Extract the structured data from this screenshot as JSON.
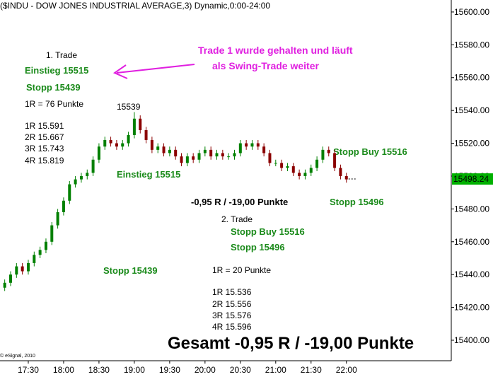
{
  "chart_data": {
    "type": "candlestick",
    "title": "($INDU - DOW JONES INDUSTRIAL AVERAGE,3) Dynamic,0:00-24:00",
    "copyright": "© eSignal, 2010",
    "up_color": "#008000",
    "down_color": "#8b0000",
    "x": [
      "17:10",
      "17:15",
      "17:20",
      "17:25",
      "17:30",
      "17:35",
      "17:40",
      "17:45",
      "17:50",
      "17:55",
      "18:00",
      "18:05",
      "18:10",
      "18:15",
      "18:20",
      "18:25",
      "18:30",
      "18:35",
      "18:40",
      "18:45",
      "18:50",
      "18:55",
      "19:00",
      "19:05",
      "19:10",
      "19:15",
      "19:20",
      "19:25",
      "19:30",
      "19:35",
      "19:40",
      "19:45",
      "19:50",
      "19:55",
      "20:00",
      "20:05",
      "20:10",
      "20:15",
      "20:20",
      "20:25",
      "20:30",
      "20:35",
      "20:40",
      "20:45",
      "20:50",
      "20:55",
      "21:00",
      "21:05",
      "21:10",
      "21:15",
      "21:20",
      "21:25",
      "21:30",
      "21:35",
      "21:40",
      "21:45",
      "21:50",
      "21:55",
      "22:00"
    ],
    "open": [
      15432,
      15435,
      15440,
      15445,
      15442,
      15447,
      15452,
      15455,
      15460,
      15470,
      15478,
      15485,
      15495,
      15498,
      15500,
      15502,
      15510,
      15518,
      15522,
      15520,
      15518,
      15520,
      15525,
      15535,
      15528,
      15522,
      15516,
      15518,
      15514,
      15516,
      15512,
      15508,
      15512,
      15510,
      15514,
      15516,
      15512,
      15514,
      15512,
      15512,
      15514,
      15520,
      15518,
      15520,
      15518,
      15514,
      15508,
      15508,
      15505,
      15506,
      15502,
      15500,
      15502,
      15505,
      15510,
      15516,
      15514,
      15505,
      15500
    ],
    "high": [
      15437,
      15442,
      15447,
      15447,
      15449,
      15454,
      15457,
      15462,
      15472,
      15480,
      15487,
      15497,
      15500,
      15502,
      15504,
      15512,
      15520,
      15524,
      15524,
      15522,
      15522,
      15527,
      15539,
      15537,
      15530,
      15524,
      15520,
      15520,
      15518,
      15518,
      15514,
      15514,
      15514,
      15516,
      15518,
      15518,
      15516,
      15516,
      15514,
      15516,
      15522,
      15522,
      15522,
      15522,
      15520,
      15516,
      15510,
      15510,
      15508,
      15508,
      15504,
      15504,
      15507,
      15512,
      15518,
      15518,
      15516,
      15507,
      15502
    ],
    "low": [
      15430,
      15433,
      15438,
      15440,
      15440,
      15445,
      15450,
      15453,
      15458,
      15468,
      15476,
      15483,
      15493,
      15496,
      15498,
      15500,
      15508,
      15516,
      15518,
      15516,
      15516,
      15518,
      15523,
      15526,
      15520,
      15514,
      15514,
      15512,
      15512,
      15510,
      15506,
      15506,
      15508,
      15508,
      15512,
      15510,
      15510,
      15510,
      15510,
      15510,
      15512,
      15516,
      15516,
      15516,
      15512,
      15506,
      15506,
      15503,
      15503,
      15500,
      15498,
      15498,
      15500,
      15503,
      15508,
      15512,
      15503,
      15498,
      15496
    ],
    "close": [
      15435,
      15440,
      15445,
      15442,
      15447,
      15452,
      15455,
      15460,
      15470,
      15478,
      15485,
      15495,
      15498,
      15500,
      15502,
      15510,
      15518,
      15522,
      15520,
      15518,
      15520,
      15525,
      15535,
      15528,
      15522,
      15516,
      15518,
      15514,
      15516,
      15512,
      15508,
      15512,
      15510,
      15514,
      15516,
      15512,
      15514,
      15512,
      15512,
      15514,
      15520,
      15518,
      15520,
      15518,
      15514,
      15508,
      15508,
      15505,
      15506,
      15502,
      15500,
      15502,
      15505,
      15510,
      15516,
      15514,
      15505,
      15500,
      15498
    ],
    "last_value": 15498.24,
    "last_color": "#00b000",
    "xlim": [
      "17:06",
      "23:29"
    ],
    "xticks": [
      "17:30",
      "18:00",
      "18:30",
      "19:00",
      "19:30",
      "20:00",
      "20:30",
      "21:00",
      "21:30",
      "22:00"
    ],
    "ylim": [
      15387.5,
      15607.3
    ],
    "yticks": [
      {
        "value": 15400,
        "label": "15400.00"
      },
      {
        "value": 15420,
        "label": "15420.00"
      },
      {
        "value": 15440,
        "label": "15440.00"
      },
      {
        "value": 15460,
        "label": "15460.00"
      },
      {
        "value": 15480,
        "label": "15480.00"
      },
      {
        "value": 15500,
        "label": "15500.00"
      },
      {
        "value": 15520,
        "label": "15520.00"
      },
      {
        "value": 15540,
        "label": "15540.00"
      },
      {
        "value": 15560,
        "label": "15560.00"
      },
      {
        "value": 15580,
        "label": "15580.00"
      },
      {
        "value": 15600,
        "label": "15600.00"
      }
    ],
    "annotations": [
      "1. Trade",
      "Einstieg 15515",
      "Stopp 15439",
      "1R = 76 Punkte",
      "1R 15.591",
      "2R 15.667",
      "3R 15.743",
      "4R 15.819",
      "15539",
      "Trade 1 wurde gehalten und läuft",
      "als Swing-Trade weiter",
      "Einstieg 15515",
      "Stopp Buy 15516",
      "-0,95 R / -19,00 Punkte",
      "Stopp 15496",
      "2. Trade",
      "Stopp Buy 15516",
      "Stopp 15496",
      "Stopp 15439",
      "1R = 20 Punkte",
      "1R 15.536",
      "2R 15.556",
      "3R 15.576",
      "4R 15.596",
      "Gesamt -0,95 R / -19,00 Punkte"
    ]
  }
}
